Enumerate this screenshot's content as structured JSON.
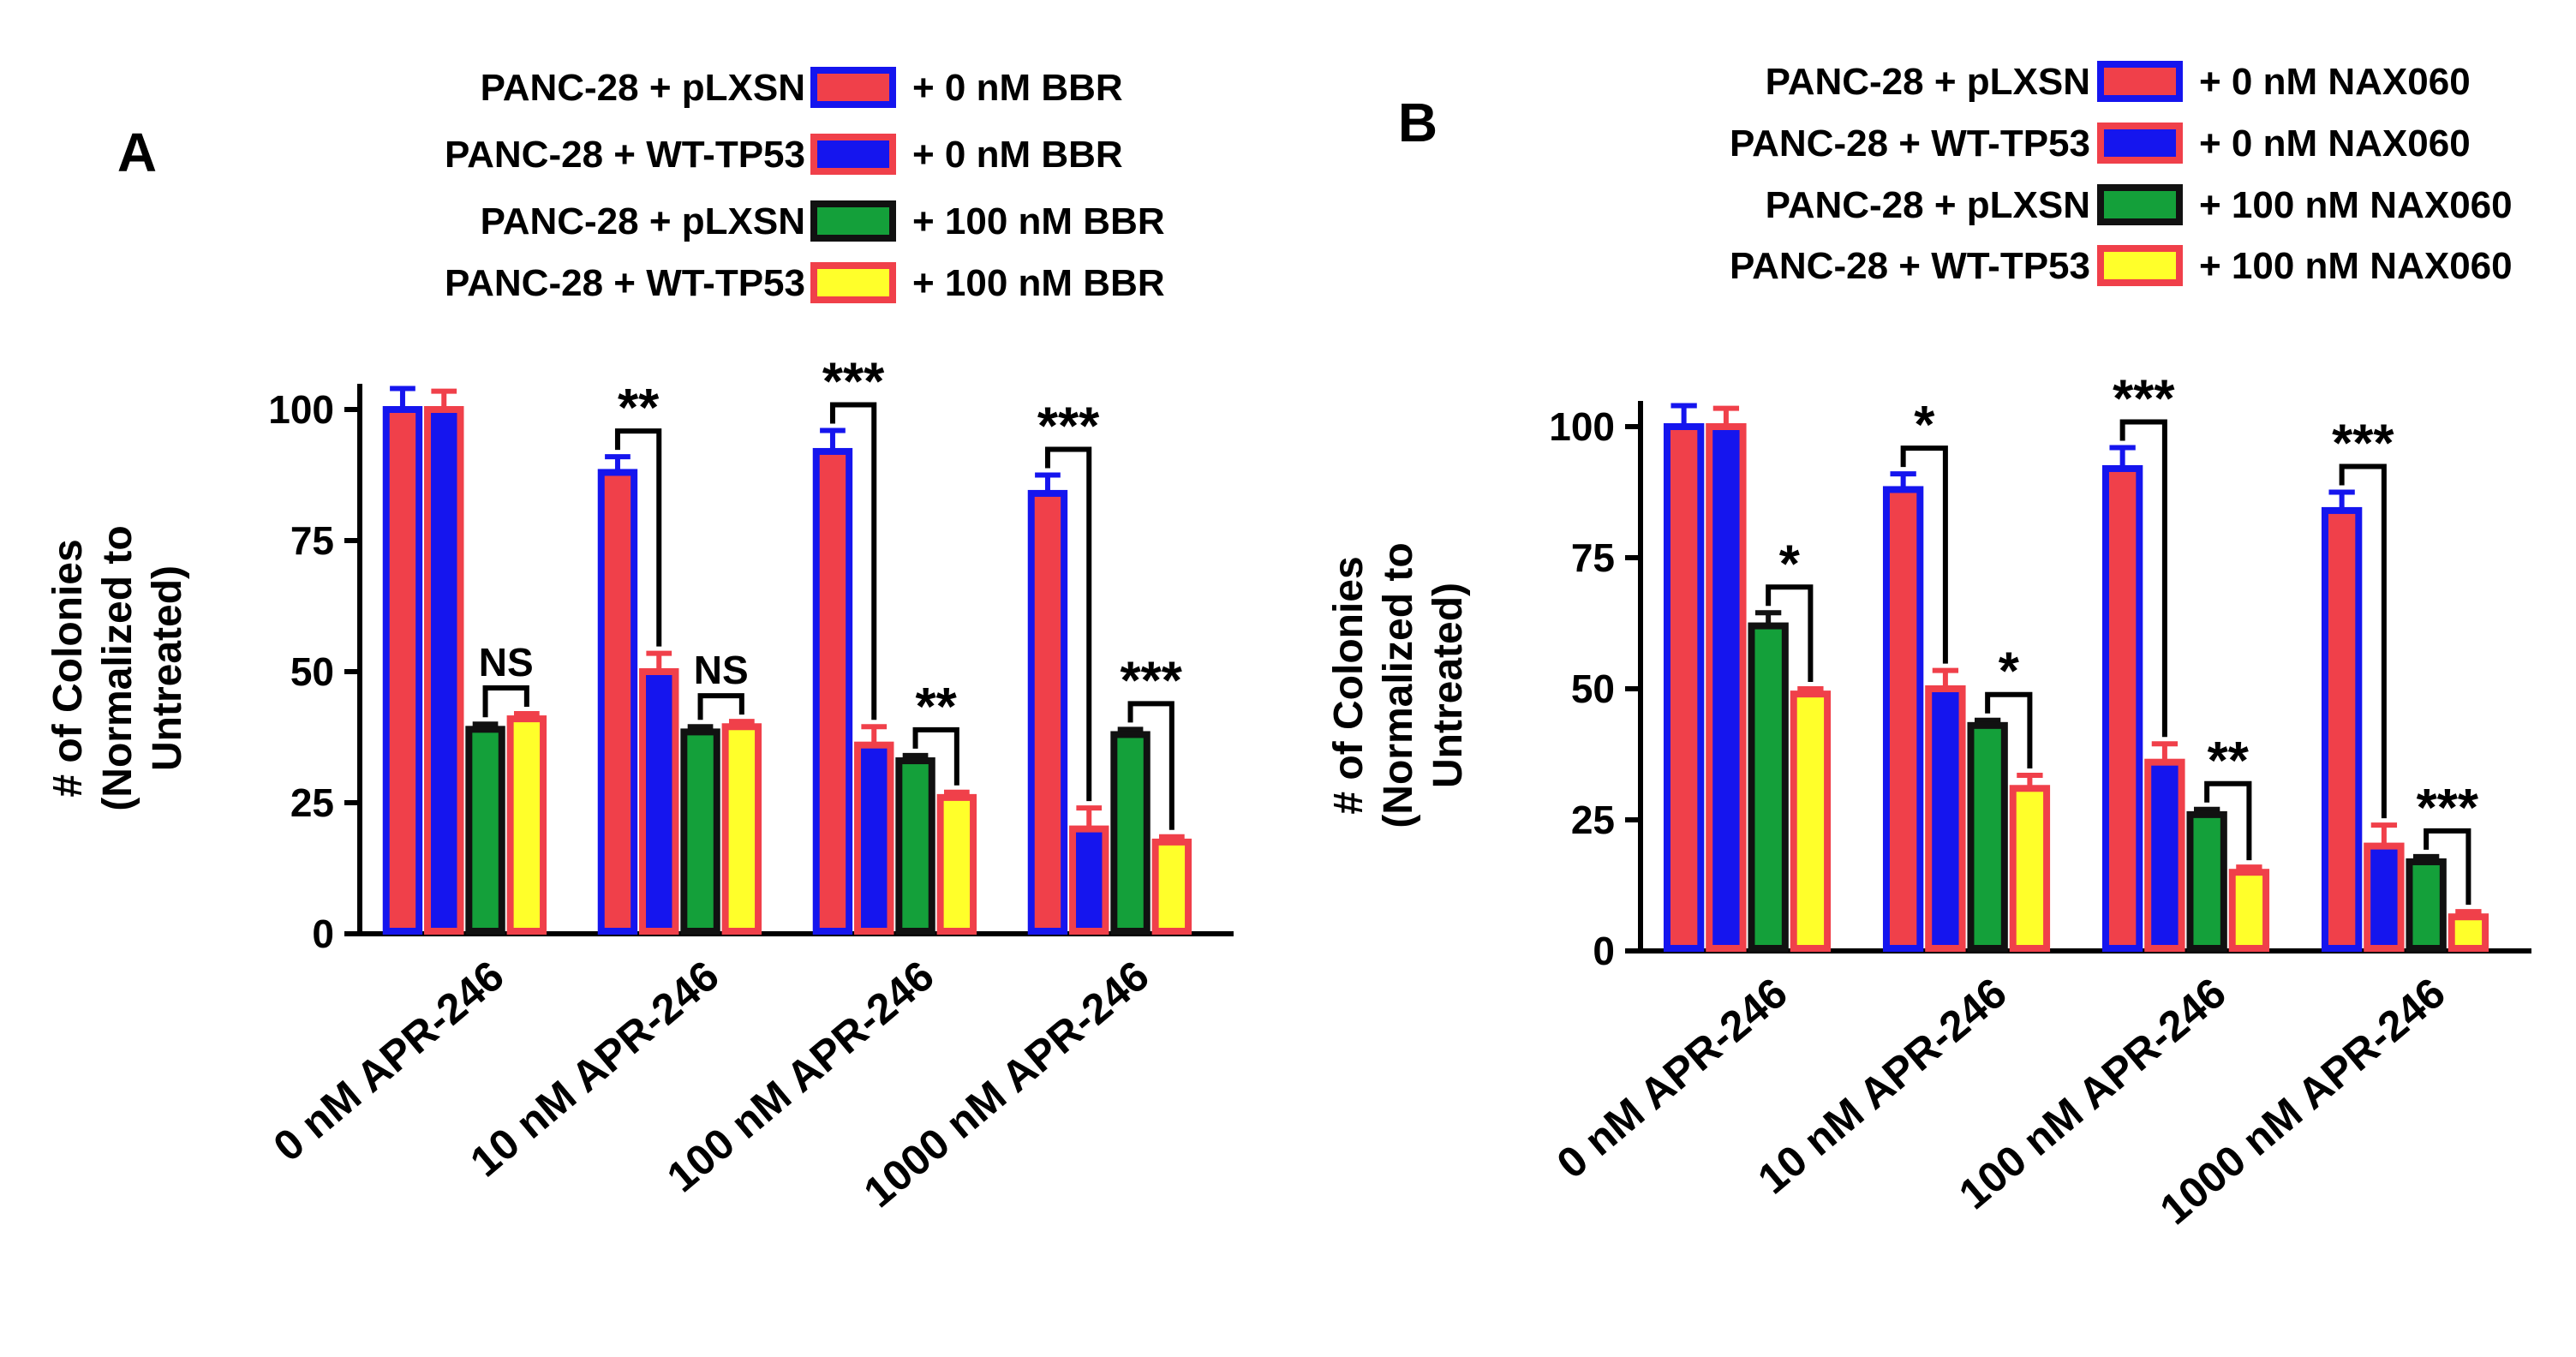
{
  "colors": {
    "red": "#f0404a",
    "blue": "#1515ee",
    "green": "#14a03a",
    "yellow": "#ffff2a",
    "black": "#111111",
    "border_red": "#f0404a",
    "border_blue": "#1515ee"
  },
  "chart_data": [
    {
      "type": "bar",
      "panel_label": "A",
      "ylabel_line1": "# of Colonies",
      "ylabel_line2": "(Normalized to",
      "ylabel_line3": "Untreated)",
      "ylim": [
        0,
        100
      ],
      "yticks": [
        "0",
        "25",
        "50",
        "75",
        "100"
      ],
      "categories": [
        "0 nM APR-246",
        "10 nM APR-246",
        "100 nM APR-246",
        "1000 nM APR-246"
      ],
      "series": [
        {
          "name": "PANC-28 + pLXSN + 0 nM BBR",
          "legend_left": "PANC-28 + pLXSN",
          "legend_right": "+ 0 nM BBR",
          "fill": "red",
          "stroke": "blue",
          "values": [
            100,
            88,
            92,
            84
          ],
          "errors": [
            4,
            3,
            4,
            3.5
          ]
        },
        {
          "name": "PANC-28 + WT-TP53 + 0 nM BBR",
          "legend_left": "PANC-28 + WT-TP53",
          "legend_right": "+ 0 nM BBR",
          "fill": "blue",
          "stroke": "red",
          "values": [
            100,
            50,
            36,
            20
          ],
          "errors": [
            3.5,
            3.5,
            3.5,
            4
          ]
        },
        {
          "name": "PANC-28 + pLXSN + 100 nM BBR",
          "legend_left": "PANC-28 + pLXSN",
          "legend_right": "+ 100 nM BBR",
          "fill": "green",
          "stroke": "black",
          "values": [
            39,
            38.5,
            33,
            38
          ],
          "errors": [
            1,
            1,
            1,
            1
          ]
        },
        {
          "name": "PANC-28 + WT-TP53 + 100 nM BBR",
          "legend_left": "PANC-28 + WT-TP53",
          "legend_right": "+ 100 nM BBR",
          "fill": "yellow",
          "stroke": "red",
          "values": [
            41,
            39.5,
            26,
            17.5
          ],
          "errors": [
            1,
            1,
            1,
            1
          ]
        }
      ],
      "annotations": [
        {
          "category": 0,
          "from_series": 2,
          "to_series": 3,
          "text": "NS"
        },
        {
          "category": 1,
          "from_series": 0,
          "to_series": 1,
          "text": "**"
        },
        {
          "category": 1,
          "from_series": 2,
          "to_series": 3,
          "text": "NS"
        },
        {
          "category": 2,
          "from_series": 0,
          "to_series": 1,
          "text": "***"
        },
        {
          "category": 2,
          "from_series": 2,
          "to_series": 3,
          "text": "**"
        },
        {
          "category": 3,
          "from_series": 0,
          "to_series": 1,
          "text": "***"
        },
        {
          "category": 3,
          "from_series": 2,
          "to_series": 3,
          "text": "***"
        }
      ]
    },
    {
      "type": "bar",
      "panel_label": "B",
      "ylabel_line1": "# of Colonies",
      "ylabel_line2": "(Normalized to",
      "ylabel_line3": "Untreated)",
      "ylim": [
        0,
        100
      ],
      "yticks": [
        "0",
        "25",
        "50",
        "75",
        "100"
      ],
      "categories": [
        "0 nM APR-246",
        "10 nM APR-246",
        "100 nM APR-246",
        "1000 nM APR-246"
      ],
      "series": [
        {
          "name": "PANC-28 + pLXSN + 0 nM NAX060",
          "legend_left": "PANC-28 + pLXSN",
          "legend_right": "+ 0 nM NAX060",
          "fill": "red",
          "stroke": "blue",
          "values": [
            100,
            88,
            92,
            84
          ],
          "errors": [
            4,
            3,
            4,
            3.5
          ]
        },
        {
          "name": "PANC-28 + WT-TP53 + 0 nM NAX060",
          "legend_left": "PANC-28 + WT-TP53",
          "legend_right": "+ 0 nM NAX060",
          "fill": "blue",
          "stroke": "red",
          "values": [
            100,
            50,
            36,
            20
          ],
          "errors": [
            3.5,
            3.5,
            3.5,
            4
          ]
        },
        {
          "name": "PANC-28 + pLXSN + 100 nM NAX060",
          "legend_left": "PANC-28 + pLXSN",
          "legend_right": "+ 100 nM NAX060",
          "fill": "green",
          "stroke": "black",
          "values": [
            62,
            43,
            26,
            17
          ],
          "errors": [
            2.5,
            1,
            1,
            1
          ]
        },
        {
          "name": "PANC-28 + WT-TP53 + 100 nM NAX060",
          "legend_left": "PANC-28 + WT-TP53",
          "legend_right": "+ 100 nM NAX060",
          "fill": "yellow",
          "stroke": "red",
          "values": [
            49,
            31,
            15,
            6.5
          ],
          "errors": [
            1,
            2.5,
            1,
            1
          ]
        }
      ],
      "annotations": [
        {
          "category": 0,
          "from_series": 2,
          "to_series": 3,
          "text": "*"
        },
        {
          "category": 1,
          "from_series": 0,
          "to_series": 1,
          "text": "*"
        },
        {
          "category": 1,
          "from_series": 2,
          "to_series": 3,
          "text": "*"
        },
        {
          "category": 2,
          "from_series": 0,
          "to_series": 1,
          "text": "***"
        },
        {
          "category": 2,
          "from_series": 2,
          "to_series": 3,
          "text": "**"
        },
        {
          "category": 3,
          "from_series": 0,
          "to_series": 1,
          "text": "***"
        },
        {
          "category": 3,
          "from_series": 2,
          "to_series": 3,
          "text": "***"
        }
      ]
    }
  ]
}
